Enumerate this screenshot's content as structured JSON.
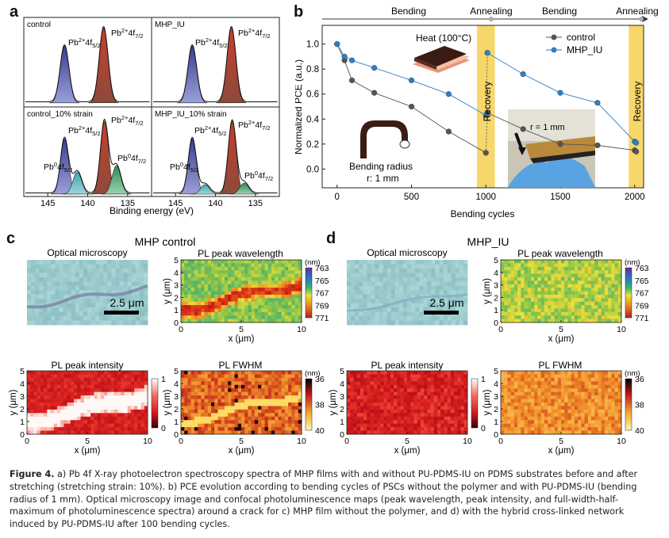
{
  "panel_letters": {
    "a": "a",
    "b": "b",
    "c": "c",
    "d": "d"
  },
  "panel_a": {
    "quadrants": [
      {
        "title": "control",
        "peaks": [
          "Pb2+4f5/2",
          "Pb2+4f7/2"
        ]
      },
      {
        "title": "MHP_IU",
        "peaks": [
          "Pb2+4f5/2",
          "Pb2+4f7/2"
        ]
      },
      {
        "title": "control_10% strain",
        "peaks": [
          "Pb2+4f5/2",
          "Pb2+4f7/2",
          "Pb04f5/2",
          "Pb04f7/2"
        ]
      },
      {
        "title": "MHP_IU_10% strain",
        "peaks": [
          "Pb2+4f5/2",
          "Pb2+4f7/2",
          "Pb04f5/2",
          "Pb04f7/2"
        ]
      }
    ],
    "xticks": [
      "145",
      "140",
      "135",
      "145",
      "140",
      "135"
    ],
    "xlabel": "Binding energy (eV)"
  },
  "chart_data": [
    {
      "type": "line",
      "panel": "b",
      "xlabel": "Bending cycles",
      "ylabel": "Normalized PCE (a.u.)",
      "xlim": [
        -100,
        2060
      ],
      "ylim": [
        -0.15,
        1.15
      ],
      "xticks": [
        0,
        500,
        1000,
        1500,
        2000
      ],
      "yticks": [
        0.0,
        0.2,
        0.4,
        0.6,
        0.8,
        1.0
      ],
      "legend_position": "top-right",
      "series": [
        {
          "name": "control",
          "color": "#555555",
          "x": [
            0,
            50,
            100,
            250,
            500,
            750,
            1000,
            1010,
            1250,
            1500,
            1750,
            2000,
            2010
          ],
          "y": [
            1.0,
            0.87,
            0.71,
            0.61,
            0.5,
            0.3,
            0.13,
            0.45,
            0.32,
            0.2,
            0.19,
            0.15,
            0.14
          ]
        },
        {
          "name": "MHP_IU",
          "color": "#2f7fc4",
          "x": [
            0,
            50,
            100,
            250,
            500,
            750,
            1000,
            1010,
            1250,
            1500,
            1750,
            2000,
            2010
          ],
          "y": [
            1.0,
            0.9,
            0.87,
            0.81,
            0.71,
            0.6,
            0.43,
            0.93,
            0.76,
            0.61,
            0.53,
            0.22,
            0.21
          ]
        }
      ],
      "phases": [
        "Bending",
        "Annealing",
        "Bending",
        "Annealing"
      ],
      "recovery_labels": [
        "Recovery",
        "Recovery"
      ],
      "annotations": {
        "heat": "Heat (100°C)",
        "bending_radius_1": "Bending radius",
        "bending_radius_2": "r: 1 mm",
        "photo_label": "r = 1 mm"
      }
    }
  ],
  "panel_c": {
    "title": "MHP control",
    "optical_title": "Optical microscopy",
    "scale_bar": "2.5 μm",
    "maps": [
      {
        "title": "PL peak wavelength",
        "unit": "(nm)",
        "colorbar": [
          "763",
          "765",
          "767",
          "769",
          "771"
        ]
      },
      {
        "title": "PL peak intensity",
        "unit": "",
        "colorbar": [
          "1",
          "0"
        ]
      },
      {
        "title": "PL FWHM",
        "unit": "(nm)",
        "colorbar": [
          "36",
          "38",
          "40"
        ]
      }
    ]
  },
  "panel_d": {
    "title": "MHP_IU",
    "optical_title": "Optical microscopy",
    "scale_bar": "2.5 μm",
    "maps": [
      {
        "title": "PL peak wavelength",
        "unit": "(nm)",
        "colorbar": [
          "763",
          "765",
          "767",
          "769",
          "771"
        ]
      },
      {
        "title": "PL peak intensity",
        "unit": "",
        "colorbar": [
          "1",
          "0"
        ]
      },
      {
        "title": "PL FWHM",
        "unit": "(nm)",
        "colorbar": [
          "36",
          "38",
          "40"
        ]
      }
    ]
  },
  "map_axes": {
    "xlabel": "x (μm)",
    "ylabel": "y (μm)",
    "xticks": [
      "0",
      "5",
      "10"
    ],
    "yticks": [
      "0",
      "1",
      "2",
      "3",
      "4",
      "5"
    ]
  },
  "caption": {
    "label": "Figure 4.",
    "text": " a) Pb 4f X-ray photoelectron spectroscopy spectra of MHP films with and without PU-PDMS-IU on PDMS substrates before and after stretching (stretching strain: 10%). b) PCE evolution according to bending cycles of PSCs without the polymer and with PU-PDMS-IU (bending radius of 1 mm). Optical microscopy image and confocal photoluminescence maps (peak wavelength, peak intensity, and full-width-half-maximum of photoluminescence spectra) around a crack for c) MHP film without the polymer, and d) with the hybrid cross-linked network induced by PU-PDMS-IU after 100 bending cycles."
  }
}
